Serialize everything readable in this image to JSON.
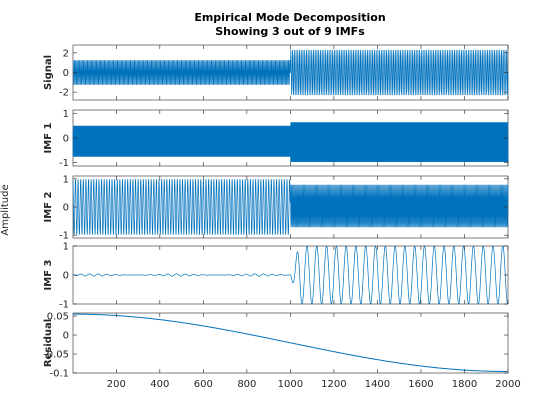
{
  "chart_data": {
    "type": "line",
    "title": "Empirical Mode Decomposition",
    "subtitle": "Showing 3 out of 9 IMFs",
    "ylabel": "Amplitude",
    "xlim": [
      1,
      2000
    ],
    "x_ticks": [
      200,
      400,
      600,
      800,
      1000,
      1200,
      1400,
      1600,
      1800,
      2000
    ],
    "line_color": "#0072BD",
    "subplots": [
      {
        "label": "Signal",
        "ylim": [
          -2.8,
          2.8
        ],
        "yticks": [
          2,
          0,
          -2
        ],
        "segment1": {
          "amp": 1.4,
          "period": 6
        },
        "segment2": {
          "amp": 2.3,
          "period": 8
        },
        "switch_x": 1000
      },
      {
        "label": "IMF 1",
        "ylim": [
          -1.15,
          1.15
        ],
        "yticks": [
          1,
          0,
          -1
        ],
        "segment1": {
          "amp": 0.78,
          "period": 3
        },
        "segment2": {
          "amp": 1.0,
          "period": 3
        },
        "switch_x": 1000
      },
      {
        "label": "IMF 2",
        "ylim": [
          -1.1,
          1.1
        ],
        "yticks": [
          1,
          0,
          -1
        ],
        "segment1": {
          "amp": 1.0,
          "period": 12
        },
        "segment2": {
          "amp": 0.8,
          "period": 5
        },
        "switch_x": 1000
      },
      {
        "label": "IMF 3",
        "ylim": [
          -1.0,
          1.0
        ],
        "yticks": [
          1,
          0,
          -1
        ],
        "segment1": {
          "amp": 0.04,
          "period": 40
        },
        "segment2": {
          "amp": 1.0,
          "period": 45
        },
        "switch_x": 1000
      },
      {
        "label": "Residual",
        "ylim": [
          -0.1,
          0.058
        ],
        "yticks": [
          0.05,
          0,
          -0.05,
          -0.1
        ],
        "ytick_labels": [
          "0.05",
          "0",
          "-0.05",
          "-0.1"
        ],
        "residual": {
          "start": 0.055,
          "end": -0.096
        }
      }
    ]
  }
}
